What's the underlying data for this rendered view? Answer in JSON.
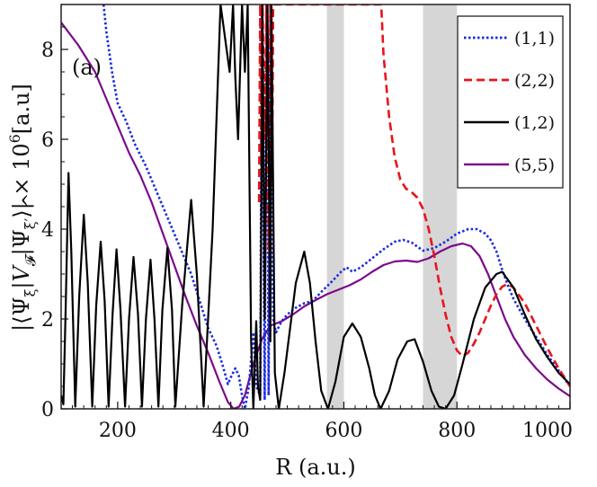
{
  "chart_data": {
    "type": "line",
    "panel_label": "(a)",
    "xlabel": "R (a.u.)",
    "ylabel": "|⟨Ψ_ξ|V̂_F|Ψ_ξ'⟩| × 10^6[a.u]",
    "ylabel_parts": {
      "open": "|⟨Ψ",
      "sub1": "ξ",
      "bar1": "|",
      "V": "V",
      "hat": "^",
      "subF": "𝓕",
      "bar2": "|Ψ",
      "sub2": "ξ′",
      "close": "⟩| × 10",
      "exp": "6",
      "unit": "[a.u]"
    },
    "xlim": [
      100,
      1000
    ],
    "ylim": [
      0,
      9
    ],
    "xticks": [
      200,
      400,
      600,
      800,
      1000
    ],
    "yticks": [
      0,
      2,
      4,
      6,
      8
    ],
    "shaded_regions": [
      [
        570,
        600
      ],
      [
        740,
        800
      ]
    ],
    "legend": {
      "position": "top-right"
    },
    "series": [
      {
        "name": "(1,1)",
        "color": "#1a2be0",
        "style": "dotted",
        "points": [
          [
            175,
            9
          ],
          [
            180,
            8.4
          ],
          [
            190,
            7.5
          ],
          [
            200,
            6.8
          ],
          [
            215,
            6.4
          ],
          [
            230,
            5.9
          ],
          [
            250,
            5.4
          ],
          [
            270,
            4.8
          ],
          [
            290,
            4.2
          ],
          [
            310,
            3.6
          ],
          [
            330,
            3.0
          ],
          [
            345,
            2.4
          ],
          [
            360,
            1.8
          ],
          [
            375,
            1.4
          ],
          [
            385,
            1.0
          ],
          [
            395,
            0.55
          ],
          [
            400,
            0.7
          ],
          [
            408,
            0.9
          ],
          [
            414,
            0.75
          ],
          [
            420,
            0.3
          ],
          [
            425,
            0.0
          ],
          [
            432,
            0.5
          ],
          [
            440,
            1.7
          ],
          [
            445,
            0.5
          ],
          [
            452,
            0.3
          ],
          [
            455,
            9
          ],
          [
            460,
            0.2
          ],
          [
            463,
            9
          ],
          [
            467,
            0.3
          ],
          [
            470,
            9
          ],
          [
            475,
            2.0
          ],
          [
            480,
            1.7
          ],
          [
            490,
            1.95
          ],
          [
            500,
            2.1
          ],
          [
            515,
            2.25
          ],
          [
            530,
            2.35
          ],
          [
            545,
            2.4
          ],
          [
            560,
            2.6
          ],
          [
            580,
            2.85
          ],
          [
            595,
            3.05
          ],
          [
            605,
            3.15
          ],
          [
            615,
            3.05
          ],
          [
            630,
            3.15
          ],
          [
            650,
            3.35
          ],
          [
            670,
            3.55
          ],
          [
            690,
            3.72
          ],
          [
            705,
            3.76
          ],
          [
            720,
            3.7
          ],
          [
            740,
            3.52
          ],
          [
            760,
            3.58
          ],
          [
            780,
            3.72
          ],
          [
            800,
            3.9
          ],
          [
            820,
            4.0
          ],
          [
            835,
            4.0
          ],
          [
            850,
            3.9
          ],
          [
            860,
            3.75
          ],
          [
            870,
            3.5
          ],
          [
            880,
            3.1
          ],
          [
            890,
            2.75
          ],
          [
            900,
            2.45
          ],
          [
            920,
            2.0
          ],
          [
            940,
            1.6
          ],
          [
            960,
            1.2
          ],
          [
            980,
            0.85
          ],
          [
            1000,
            0.5
          ]
        ]
      },
      {
        "name": "(2,2)",
        "color": "#e8141b",
        "style": "dashed",
        "points": [
          [
            450,
            4.6
          ],
          [
            452,
            9
          ],
          [
            454,
            5.5
          ],
          [
            456,
            9
          ],
          [
            460,
            6.0
          ],
          [
            463,
            9
          ],
          [
            467,
            3.5
          ],
          [
            470,
            9
          ],
          [
            473,
            5.0
          ],
          [
            475,
            9
          ],
          [
            666,
            9
          ],
          [
            670,
            7.9
          ],
          [
            680,
            6.5
          ],
          [
            690,
            5.6
          ],
          [
            700,
            5.1
          ],
          [
            710,
            4.9
          ],
          [
            720,
            4.82
          ],
          [
            730,
            4.7
          ],
          [
            740,
            4.45
          ],
          [
            750,
            4.0
          ],
          [
            760,
            3.4
          ],
          [
            770,
            2.7
          ],
          [
            780,
            2.1
          ],
          [
            790,
            1.6
          ],
          [
            800,
            1.3
          ],
          [
            810,
            1.17
          ],
          [
            820,
            1.25
          ],
          [
            830,
            1.45
          ],
          [
            840,
            1.7
          ],
          [
            850,
            2.0
          ],
          [
            860,
            2.3
          ],
          [
            870,
            2.55
          ],
          [
            880,
            2.72
          ],
          [
            890,
            2.78
          ],
          [
            900,
            2.7
          ],
          [
            920,
            2.35
          ],
          [
            940,
            1.85
          ],
          [
            960,
            1.35
          ],
          [
            980,
            0.9
          ],
          [
            1000,
            0.5
          ]
        ]
      },
      {
        "name": "(1,2)",
        "color": "#000000",
        "style": "solid",
        "points": [
          [
            100,
            0.3
          ],
          [
            104,
            0.1
          ],
          [
            108,
            2.2
          ],
          [
            113,
            5.25
          ],
          [
            118,
            3.5
          ],
          [
            125,
            0.05
          ],
          [
            132,
            2.5
          ],
          [
            140,
            4.32
          ],
          [
            147,
            2.8
          ],
          [
            155,
            0.05
          ],
          [
            162,
            2.3
          ],
          [
            170,
            3.72
          ],
          [
            177,
            2.4
          ],
          [
            184,
            0.05
          ],
          [
            191,
            2.1
          ],
          [
            198,
            3.55
          ],
          [
            205,
            2.2
          ],
          [
            213,
            0.05
          ],
          [
            220,
            2.0
          ],
          [
            228,
            3.38
          ],
          [
            236,
            2.1
          ],
          [
            243,
            0.05
          ],
          [
            250,
            2.0
          ],
          [
            258,
            3.32
          ],
          [
            265,
            2.0
          ],
          [
            272,
            0.05
          ],
          [
            279,
            2.2
          ],
          [
            288,
            3.58
          ],
          [
            296,
            2.2
          ],
          [
            302,
            0.05
          ],
          [
            314,
            2.3
          ],
          [
            330,
            4.65
          ],
          [
            340,
            3.0
          ],
          [
            352,
            0.05
          ],
          [
            368,
            4.0
          ],
          [
            382,
            9
          ],
          [
            398,
            7.5
          ],
          [
            404,
            9
          ],
          [
            408,
            7.4
          ],
          [
            413,
            6.0
          ],
          [
            420,
            9
          ],
          [
            425,
            7.5
          ],
          [
            430,
            9
          ],
          [
            436,
            1.5
          ],
          [
            440,
            0.0
          ],
          [
            445,
            1.95
          ],
          [
            448,
            0.5
          ],
          [
            452,
            0.2
          ],
          [
            456,
            9
          ],
          [
            460,
            2.0
          ],
          [
            465,
            9
          ],
          [
            470,
            1.5
          ],
          [
            472,
            9
          ],
          [
            478,
            0.8
          ],
          [
            485,
            0.0
          ],
          [
            495,
            0.8
          ],
          [
            505,
            1.8
          ],
          [
            515,
            2.8
          ],
          [
            530,
            3.5
          ],
          [
            540,
            2.8
          ],
          [
            550,
            1.5
          ],
          [
            560,
            0.4
          ],
          [
            572,
            0.0
          ],
          [
            585,
            0.6
          ],
          [
            600,
            1.6
          ],
          [
            615,
            1.9
          ],
          [
            630,
            1.6
          ],
          [
            645,
            0.9
          ],
          [
            655,
            0.3
          ],
          [
            665,
            0.0
          ],
          [
            680,
            0.4
          ],
          [
            695,
            1.1
          ],
          [
            712,
            1.5
          ],
          [
            725,
            1.55
          ],
          [
            740,
            1.05
          ],
          [
            755,
            0.4
          ],
          [
            768,
            0.05
          ],
          [
            780,
            0.0
          ],
          [
            795,
            0.3
          ],
          [
            810,
            1.0
          ],
          [
            830,
            2.0
          ],
          [
            850,
            2.7
          ],
          [
            870,
            3.0
          ],
          [
            880,
            3.05
          ],
          [
            900,
            2.7
          ],
          [
            920,
            2.1
          ],
          [
            940,
            1.55
          ],
          [
            960,
            1.15
          ],
          [
            980,
            0.8
          ],
          [
            1000,
            0.55
          ]
        ]
      },
      {
        "name": "(5,5)",
        "color": "#7b0a8a",
        "style": "solid",
        "points": [
          [
            100,
            8.6
          ],
          [
            130,
            8.1
          ],
          [
            160,
            7.5
          ],
          [
            180,
            6.9
          ],
          [
            200,
            6.3
          ],
          [
            220,
            5.7
          ],
          [
            240,
            5.2
          ],
          [
            260,
            4.6
          ],
          [
            280,
            3.9
          ],
          [
            300,
            3.2
          ],
          [
            320,
            2.5
          ],
          [
            340,
            1.85
          ],
          [
            360,
            1.25
          ],
          [
            380,
            0.6
          ],
          [
            395,
            0.15
          ],
          [
            405,
            0.0
          ],
          [
            415,
            0.05
          ],
          [
            425,
            0.3
          ],
          [
            440,
            1.0
          ],
          [
            455,
            1.55
          ],
          [
            470,
            1.85
          ],
          [
            490,
            1.95
          ],
          [
            510,
            2.1
          ],
          [
            530,
            2.28
          ],
          [
            550,
            2.42
          ],
          [
            570,
            2.55
          ],
          [
            590,
            2.65
          ],
          [
            610,
            2.75
          ],
          [
            630,
            2.88
          ],
          [
            650,
            3.05
          ],
          [
            670,
            3.2
          ],
          [
            690,
            3.28
          ],
          [
            710,
            3.3
          ],
          [
            730,
            3.27
          ],
          [
            750,
            3.35
          ],
          [
            770,
            3.5
          ],
          [
            790,
            3.62
          ],
          [
            810,
            3.68
          ],
          [
            825,
            3.62
          ],
          [
            840,
            3.4
          ],
          [
            855,
            3.0
          ],
          [
            870,
            2.5
          ],
          [
            885,
            2.0
          ],
          [
            900,
            1.6
          ],
          [
            920,
            1.2
          ],
          [
            940,
            0.9
          ],
          [
            960,
            0.65
          ],
          [
            980,
            0.45
          ],
          [
            1000,
            0.28
          ]
        ]
      }
    ]
  }
}
